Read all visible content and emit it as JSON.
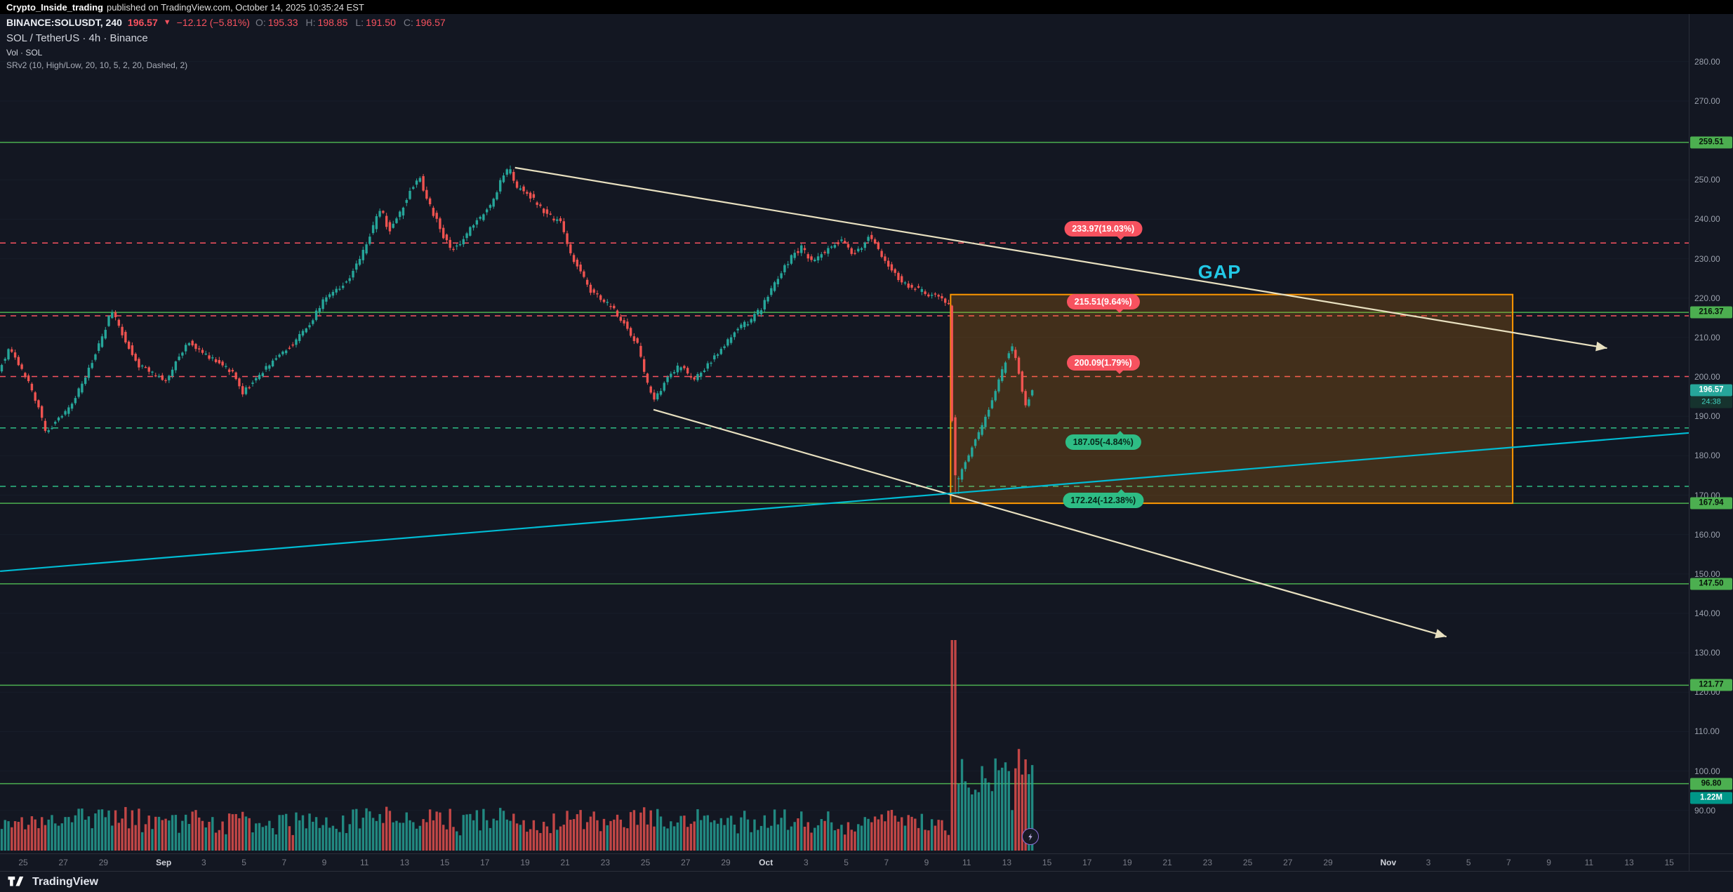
{
  "attribution": {
    "author": "Crypto_Inside_trading",
    "rest": "published on TradingView.com, October 14, 2025 10:35:24 EST"
  },
  "symbol_row": {
    "symbol": "BINANCE:SOLUSDT, 240",
    "price": "196.57",
    "arrow": "▼",
    "change": "−12.12 (−5.81%)",
    "o_label": "O:",
    "open": "195.33",
    "h_label": "H:",
    "high": "198.85",
    "l_label": "L:",
    "low": "191.50",
    "c_label": "C:",
    "close": "196.57"
  },
  "legend": {
    "line1": "SOL / TetherUS · 4h · Binance",
    "line2": "Vol · SOL",
    "line3": "SRv2 (10, High/Low, 20, 10, 5, 2, 20, Dashed, 2)"
  },
  "colors": {
    "up": "#26a69a",
    "down": "#ef5350",
    "sr_green": "#4caf50",
    "dashed_red": "#f7525f",
    "dashed_green": "#2ebd85",
    "box_border": "#ff9800",
    "box_fill": "rgba(255,145,0,0.2)",
    "trend_cream": "#e8e0c0",
    "trend_cyan": "#00bcd4",
    "grid": "#1c2230"
  },
  "price_axis": {
    "ticks": [
      280,
      270,
      260,
      250,
      240,
      230,
      220,
      210,
      200,
      190,
      180,
      170,
      160,
      150,
      140,
      130,
      120,
      110,
      100,
      90
    ],
    "current": {
      "text": "196.57",
      "countdown": "24:38"
    },
    "volume_label": "1.22M"
  },
  "time_axis": {
    "labels": [
      {
        "t": "25",
        "d": 0
      },
      {
        "t": "27",
        "d": 2
      },
      {
        "t": "29",
        "d": 4
      },
      {
        "t": "Sep",
        "d": 7,
        "major": true
      },
      {
        "t": "3",
        "d": 9
      },
      {
        "t": "5",
        "d": 11
      },
      {
        "t": "7",
        "d": 13
      },
      {
        "t": "9",
        "d": 15
      },
      {
        "t": "11",
        "d": 17
      },
      {
        "t": "13",
        "d": 19
      },
      {
        "t": "15",
        "d": 21
      },
      {
        "t": "17",
        "d": 23
      },
      {
        "t": "19",
        "d": 25
      },
      {
        "t": "21",
        "d": 27
      },
      {
        "t": "23",
        "d": 29
      },
      {
        "t": "25",
        "d": 31
      },
      {
        "t": "27",
        "d": 33
      },
      {
        "t": "29",
        "d": 35
      },
      {
        "t": "Oct",
        "d": 37,
        "major": true
      },
      {
        "t": "3",
        "d": 39
      },
      {
        "t": "5",
        "d": 41
      },
      {
        "t": "7",
        "d": 43
      },
      {
        "t": "9",
        "d": 45
      },
      {
        "t": "11",
        "d": 47
      },
      {
        "t": "13",
        "d": 49
      },
      {
        "t": "15",
        "d": 51
      },
      {
        "t": "17",
        "d": 53
      },
      {
        "t": "19",
        "d": 55
      },
      {
        "t": "21",
        "d": 57
      },
      {
        "t": "23",
        "d": 59
      },
      {
        "t": "25",
        "d": 61
      },
      {
        "t": "27",
        "d": 63
      },
      {
        "t": "29",
        "d": 65
      },
      {
        "t": "Nov",
        "d": 68,
        "major": true
      },
      {
        "t": "3",
        "d": 70
      },
      {
        "t": "5",
        "d": 72
      },
      {
        "t": "7",
        "d": 74
      },
      {
        "t": "9",
        "d": 76
      },
      {
        "t": "11",
        "d": 78
      },
      {
        "t": "13",
        "d": 80
      },
      {
        "t": "15",
        "d": 82
      }
    ]
  },
  "chart_data": {
    "type": "candlestick",
    "title": "SOL / TetherUS · 4h · Binance",
    "symbol": "SOL/USDT",
    "exchange": "Binance",
    "timeframe": "4h",
    "last_price": 196.57,
    "change": -12.12,
    "change_pct": -5.81,
    "ohlc": {
      "open": 195.33,
      "high": 198.85,
      "low": 191.5,
      "close": 196.57
    },
    "y_axis": {
      "visible_price_min": 79,
      "visible_price_max": 288,
      "tick_step": 10
    },
    "x_axis": {
      "day0_label": "Aug 25",
      "last_visible_label": "Nov 15",
      "day_start": -1.15,
      "day_end": 50.35
    },
    "levels": {
      "solid_green": [
        259.51,
        216.37,
        167.94,
        147.5,
        121.77,
        96.8
      ],
      "dashed_red": [
        233.97,
        215.51,
        200.09
      ],
      "dashed_green": [
        187.05,
        172.24
      ]
    },
    "volume": {
      "last": "1.22M",
      "spike_day": 46.4
    },
    "annotations": {
      "gap_label": {
        "text": "GAP",
        "day": 59.6,
        "price": 226.5
      },
      "box": {
        "day_start": 46.2,
        "day_end": 74.2,
        "price_top": 220.9,
        "price_bottom": 167.94
      },
      "pill_anchor_day": 53.8,
      "pills": [
        {
          "text": "233.97(19.03%)",
          "price": 233.97,
          "color": "red",
          "pointer": "down"
        },
        {
          "text": "215.51(9.64%)",
          "price": 215.51,
          "color": "red",
          "pointer": "down"
        },
        {
          "text": "200.09(1.79%)",
          "price": 200.09,
          "color": "red",
          "pointer": "down"
        },
        {
          "text": "187.05(-4.84%)",
          "price": 187.05,
          "color": "green",
          "pointer": "up"
        },
        {
          "text": "172.24(-12.38%)",
          "price": 172.24,
          "color": "green",
          "pointer": "up"
        }
      ],
      "trendlines": [
        {
          "name": "upper-descending-trendline",
          "from": {
            "day": 24.5,
            "price": 253.1
          },
          "to": {
            "day": 78.9,
            "price": 207.3
          },
          "color": "cream",
          "arrow": true
        },
        {
          "name": "lower-descending-trendline",
          "from": {
            "day": 31.4,
            "price": 191.7
          },
          "to": {
            "day": 70.9,
            "price": 134.1
          },
          "color": "cream",
          "arrow": true
        },
        {
          "name": "ascending-support-trendline",
          "from": {
            "day": -1.15,
            "price": 150.7
          },
          "to": {
            "day": 83,
            "price": 185.8
          },
          "color": "cyan",
          "arrow": false
        }
      ]
    },
    "price_path": [
      [
        -1.15,
        202
      ],
      [
        -0.6,
        207
      ],
      [
        0.3,
        199
      ],
      [
        0.8,
        193
      ],
      [
        1.2,
        186
      ],
      [
        1.8,
        189
      ],
      [
        2.5,
        193
      ],
      [
        3.2,
        200
      ],
      [
        4.0,
        210
      ],
      [
        4.5,
        217
      ],
      [
        5.2,
        209
      ],
      [
        5.8,
        203
      ],
      [
        6.5,
        201
      ],
      [
        7.2,
        199
      ],
      [
        7.8,
        205
      ],
      [
        8.3,
        209
      ],
      [
        9.0,
        206
      ],
      [
        9.8,
        204
      ],
      [
        10.5,
        201
      ],
      [
        11.0,
        196
      ],
      [
        11.6,
        199
      ],
      [
        12.3,
        203
      ],
      [
        13.0,
        206
      ],
      [
        13.6,
        209
      ],
      [
        14.3,
        213
      ],
      [
        15.0,
        219
      ],
      [
        15.7,
        222
      ],
      [
        16.3,
        225
      ],
      [
        16.9,
        230
      ],
      [
        17.5,
        238
      ],
      [
        17.9,
        243
      ],
      [
        18.3,
        237
      ],
      [
        18.8,
        241
      ],
      [
        19.4,
        248
      ],
      [
        19.8,
        251
      ],
      [
        20.3,
        244
      ],
      [
        20.9,
        237
      ],
      [
        21.4,
        232
      ],
      [
        22.0,
        235
      ],
      [
        22.6,
        239
      ],
      [
        23.3,
        243
      ],
      [
        23.9,
        250
      ],
      [
        24.3,
        253
      ],
      [
        24.7,
        248
      ],
      [
        25.2,
        247
      ],
      [
        25.8,
        243
      ],
      [
        26.3,
        241
      ],
      [
        26.9,
        239
      ],
      [
        27.3,
        232
      ],
      [
        27.8,
        227
      ],
      [
        28.3,
        222
      ],
      [
        28.9,
        220
      ],
      [
        29.5,
        217
      ],
      [
        30.1,
        213
      ],
      [
        30.7,
        208
      ],
      [
        31.1,
        199
      ],
      [
        31.5,
        194
      ],
      [
        31.9,
        197
      ],
      [
        32.3,
        201
      ],
      [
        32.9,
        203
      ],
      [
        33.4,
        199
      ],
      [
        33.9,
        201
      ],
      [
        34.5,
        205
      ],
      [
        35.0,
        208
      ],
      [
        35.6,
        212
      ],
      [
        36.2,
        214
      ],
      [
        36.8,
        217
      ],
      [
        37.3,
        222
      ],
      [
        37.9,
        227
      ],
      [
        38.4,
        231
      ],
      [
        38.9,
        233
      ],
      [
        39.3,
        229
      ],
      [
        39.8,
        231
      ],
      [
        40.3,
        233
      ],
      [
        40.9,
        235
      ],
      [
        41.4,
        231
      ],
      [
        41.9,
        233
      ],
      [
        42.2,
        236
      ],
      [
        42.7,
        232
      ],
      [
        43.2,
        228
      ],
      [
        43.7,
        225
      ],
      [
        44.2,
        223
      ],
      [
        44.7,
        222
      ],
      [
        45.2,
        221
      ],
      [
        45.7,
        220
      ],
      [
        46.0,
        219
      ],
      [
        46.2,
        218
      ],
      [
        46.3,
        196
      ],
      [
        46.45,
        176
      ],
      [
        46.6,
        173
      ],
      [
        46.75,
        175
      ],
      [
        46.9,
        177
      ],
      [
        47.2,
        180
      ],
      [
        47.5,
        184
      ],
      [
        47.8,
        187
      ],
      [
        48.1,
        191
      ],
      [
        48.4,
        195
      ],
      [
        48.7,
        199
      ],
      [
        49.0,
        204
      ],
      [
        49.3,
        208
      ],
      [
        49.55,
        204
      ],
      [
        49.8,
        198
      ],
      [
        50.0,
        193
      ],
      [
        50.35,
        196.6
      ]
    ]
  },
  "footer": {
    "brand": "TradingView"
  }
}
